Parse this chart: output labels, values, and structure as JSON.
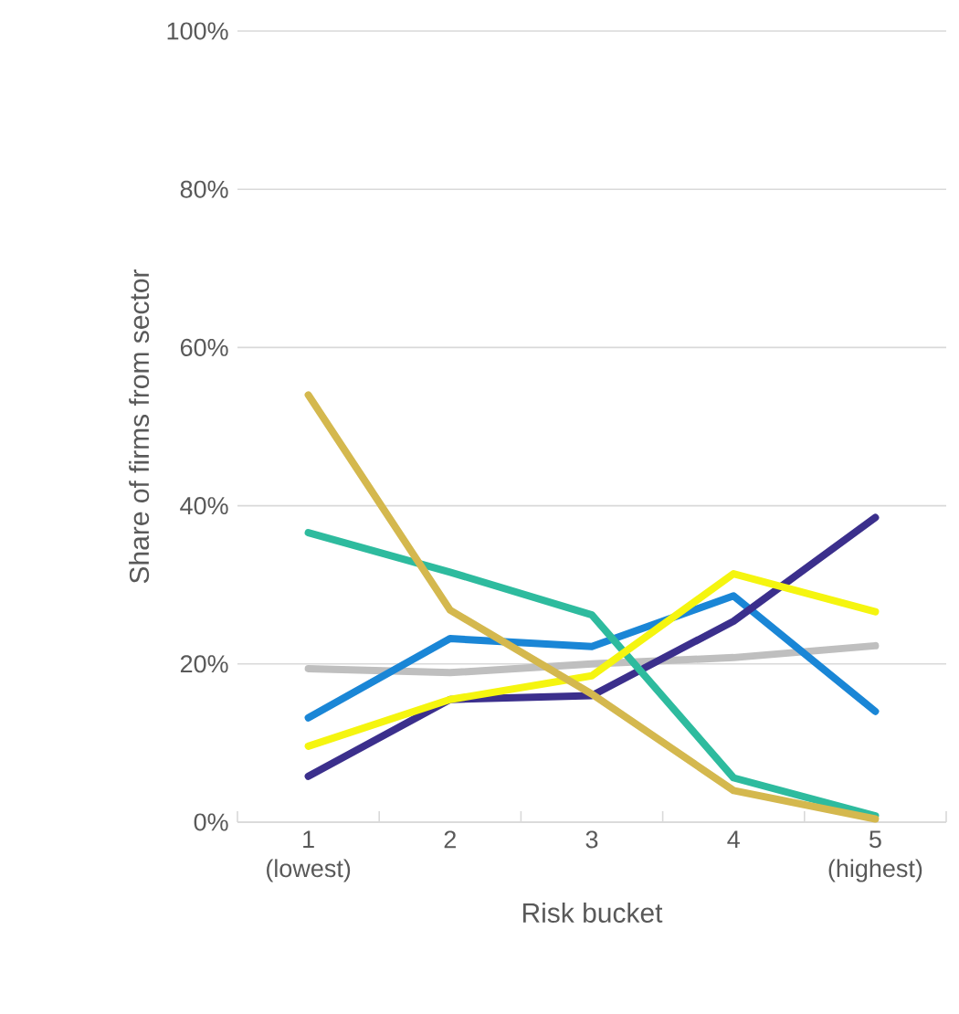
{
  "chart_data": {
    "type": "line",
    "xlabel": "Risk bucket",
    "ylabel": "Share of firms from sector",
    "categories": [
      "1 (lowest)",
      "2",
      "3",
      "4",
      "5 (highest)"
    ],
    "ylim": [
      0,
      100
    ],
    "yticks": [
      {
        "value": 0,
        "label": "0%"
      },
      {
        "value": 20,
        "label": "20%"
      },
      {
        "value": 40,
        "label": "40%"
      },
      {
        "value": 60,
        "label": "60%"
      },
      {
        "value": 80,
        "label": "80%"
      },
      {
        "value": 100,
        "label": "100%"
      }
    ],
    "grid": "y",
    "series": [
      {
        "color": "#bfbfbf",
        "values": [
          19.4,
          18.9,
          20,
          20.8,
          22.3
        ]
      },
      {
        "color": "#1a86d6",
        "values": [
          13.2,
          23.2,
          22.2,
          28.6,
          14
        ]
      },
      {
        "color": "#3b2f8c",
        "values": [
          5.8,
          15.5,
          16,
          25.4,
          38.5
        ]
      },
      {
        "color": "#2ebb9e",
        "values": [
          36.6,
          31.6,
          26.2,
          5.6,
          0.8
        ]
      },
      {
        "color": "#f5f50f",
        "values": [
          9.6,
          15.5,
          18.5,
          31.4,
          26.6
        ]
      },
      {
        "color": "#d4b84e",
        "values": [
          54,
          26.8,
          16.2,
          4,
          0.4
        ]
      }
    ]
  }
}
